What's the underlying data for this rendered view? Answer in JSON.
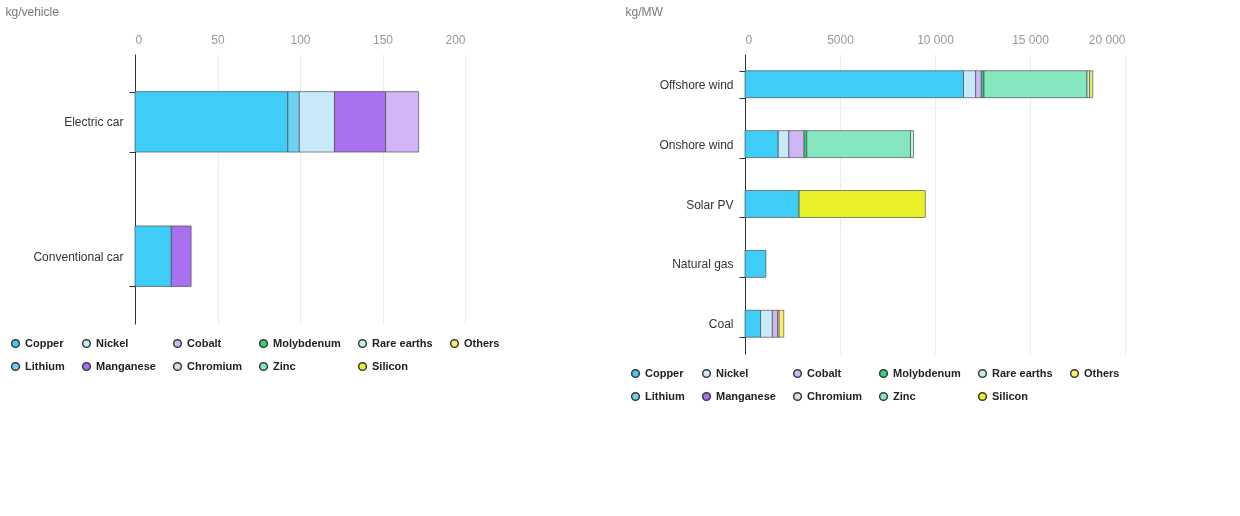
{
  "chart_data": [
    {
      "type": "bar",
      "orientation": "horizontal",
      "stacked": true,
      "xlabel": "kg/vehicle",
      "categories": [
        "Electric car",
        "Conventional car"
      ],
      "xlim": [
        0,
        200
      ],
      "xticks": [
        0,
        50,
        100,
        150,
        200
      ],
      "grid": "x",
      "legend": "bottom",
      "series": [
        {
          "name": "Copper",
          "color": "#3fcdf8",
          "values": [
            92.6,
            22
          ]
        },
        {
          "name": "Lithium",
          "color": "#6fd0f2",
          "values": [
            7,
            null
          ]
        },
        {
          "name": "Nickel",
          "color": "#c8eaf8",
          "values": [
            21.3,
            null
          ]
        },
        {
          "name": "Manganese",
          "color": "#a970f0",
          "values": [
            31,
            12
          ]
        },
        {
          "name": "Cobalt",
          "color": "#d0b6f6",
          "values": [
            20,
            null
          ]
        },
        {
          "name": "Chromium",
          "color": "#dcdce4",
          "values": [
            null,
            null
          ]
        },
        {
          "name": "Molybdenum",
          "color": "#2fd47f",
          "values": [
            null,
            null
          ]
        },
        {
          "name": "Zinc",
          "color": "#86e6bf",
          "values": [
            null,
            null
          ]
        },
        {
          "name": "Rare earths",
          "color": "#c2f2dc",
          "values": [
            null,
            null
          ]
        },
        {
          "name": "Silicon",
          "color": "#e8f02a",
          "values": [
            null,
            null
          ]
        },
        {
          "name": "Others",
          "color": "#fbef6a",
          "values": [
            null,
            null
          ]
        }
      ]
    },
    {
      "type": "bar",
      "orientation": "horizontal",
      "stacked": true,
      "xlabel": "kg/MW",
      "categories": [
        "Offshore wind",
        "Onshore wind",
        "Solar PV",
        "Natural gas",
        "Coal"
      ],
      "xlim": [
        0,
        20000
      ],
      "xticks": [
        0,
        5000,
        {
          "value": 10000,
          "label": "10 000"
        },
        {
          "value": 15000,
          "label": "15 000"
        },
        {
          "value": 20000,
          "label": "20 000"
        }
      ],
      "grid": "x",
      "legend": "bottom",
      "series": [
        {
          "name": "Copper",
          "color": "#3fcdf8",
          "values": [
            11500,
            1750,
            2850,
            1100,
            820
          ]
        },
        {
          "name": "Lithium",
          "color": "#6fd0f2",
          "values": [
            null,
            null,
            null,
            null,
            null
          ]
        },
        {
          "name": "Nickel",
          "color": "#c8eaf8",
          "values": [
            640,
            560,
            null,
            null,
            620
          ]
        },
        {
          "name": "Manganese",
          "color": "#a970f0",
          "values": [
            null,
            null,
            null,
            null,
            null
          ]
        },
        {
          "name": "Cobalt",
          "color": "#d0b6f6",
          "values": [
            300,
            800,
            null,
            null,
            280
          ]
        },
        {
          "name": "Chromium",
          "color": "#dcdce4",
          "values": [
            null,
            null,
            null,
            null,
            80
          ]
        },
        {
          "name": "Molybdenum",
          "color": "#2fd47f",
          "values": [
            140,
            140,
            null,
            null,
            null
          ]
        },
        {
          "name": "Zinc",
          "color": "#86e6bf",
          "values": [
            5420,
            5460,
            null,
            null,
            null
          ]
        },
        {
          "name": "Rare earths",
          "color": "#c2f2dc",
          "values": [
            140,
            160,
            null,
            null,
            null
          ]
        },
        {
          "name": "Silicon",
          "color": "#e8f02a",
          "values": [
            null,
            null,
            6640,
            null,
            null
          ]
        },
        {
          "name": "Others",
          "color": "#fbef6a",
          "values": [
            160,
            null,
            null,
            null,
            240
          ]
        }
      ]
    }
  ]
}
